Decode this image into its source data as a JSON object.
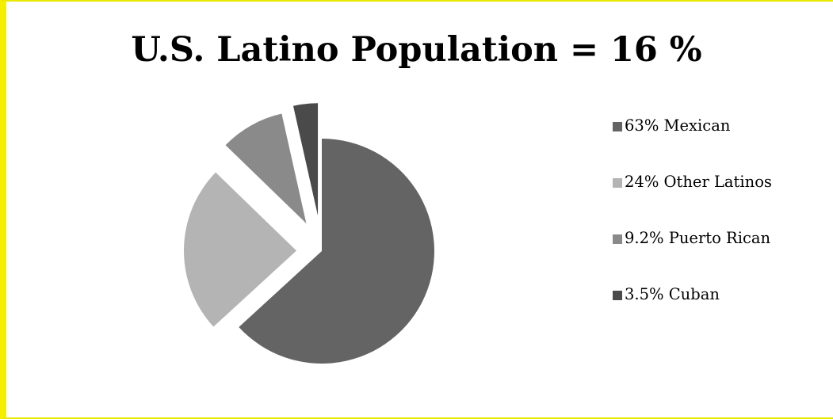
{
  "chart_data": {
    "type": "pie",
    "title": "U.S. Latino Population = 16 %",
    "slices": [
      {
        "label": "63% Mexican",
        "value": 63,
        "color": "#646464"
      },
      {
        "label": "24% Other Latinos",
        "value": 24,
        "color": "#b4b4b4"
      },
      {
        "label": "9.2% Puerto Rican",
        "value": 9.2,
        "color": "#8a8a8a"
      },
      {
        "label": "3.5% Cuban",
        "value": 3.5,
        "color": "#4a4a4a"
      }
    ],
    "legend_position": "right",
    "exploded": true
  }
}
